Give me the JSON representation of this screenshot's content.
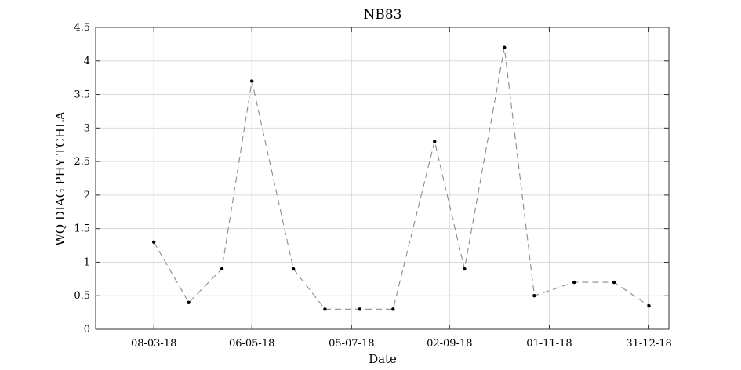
{
  "chart_data": {
    "type": "line",
    "title": "NB83",
    "xlabel": "Date",
    "ylabel": "WQ DIAG PHY TCHLA",
    "ylim": [
      0,
      4.5
    ],
    "yticks": [
      "0",
      "0.5",
      "1",
      "1.5",
      "2",
      "2.5",
      "3",
      "3.5",
      "4",
      "4.5"
    ],
    "xlim": [
      "2018-02-01",
      "2019-01-12"
    ],
    "xticks": [
      {
        "date": "2018-03-08",
        "label": "08-03-18"
      },
      {
        "date": "2018-05-06",
        "label": "06-05-18"
      },
      {
        "date": "2018-07-05",
        "label": "05-07-18"
      },
      {
        "date": "2018-09-02",
        "label": "02-09-18"
      },
      {
        "date": "2018-11-01",
        "label": "01-11-18"
      },
      {
        "date": "2018-12-31",
        "label": "31-12-18"
      }
    ],
    "grid": true,
    "series": [
      {
        "x": [
          "2018-03-08",
          "2018-03-29",
          "2018-04-18",
          "2018-05-06",
          "2018-05-31",
          "2018-06-19",
          "2018-07-10",
          "2018-07-30",
          "2018-08-24",
          "2018-09-11",
          "2018-10-05",
          "2018-10-23",
          "2018-11-16",
          "2018-12-10",
          "2018-12-31"
        ],
        "values": [
          1.3,
          0.4,
          0.9,
          3.7,
          0.9,
          0.3,
          0.3,
          0.3,
          2.8,
          0.9,
          4.2,
          0.5,
          0.7,
          0.7,
          0.35
        ]
      }
    ]
  }
}
